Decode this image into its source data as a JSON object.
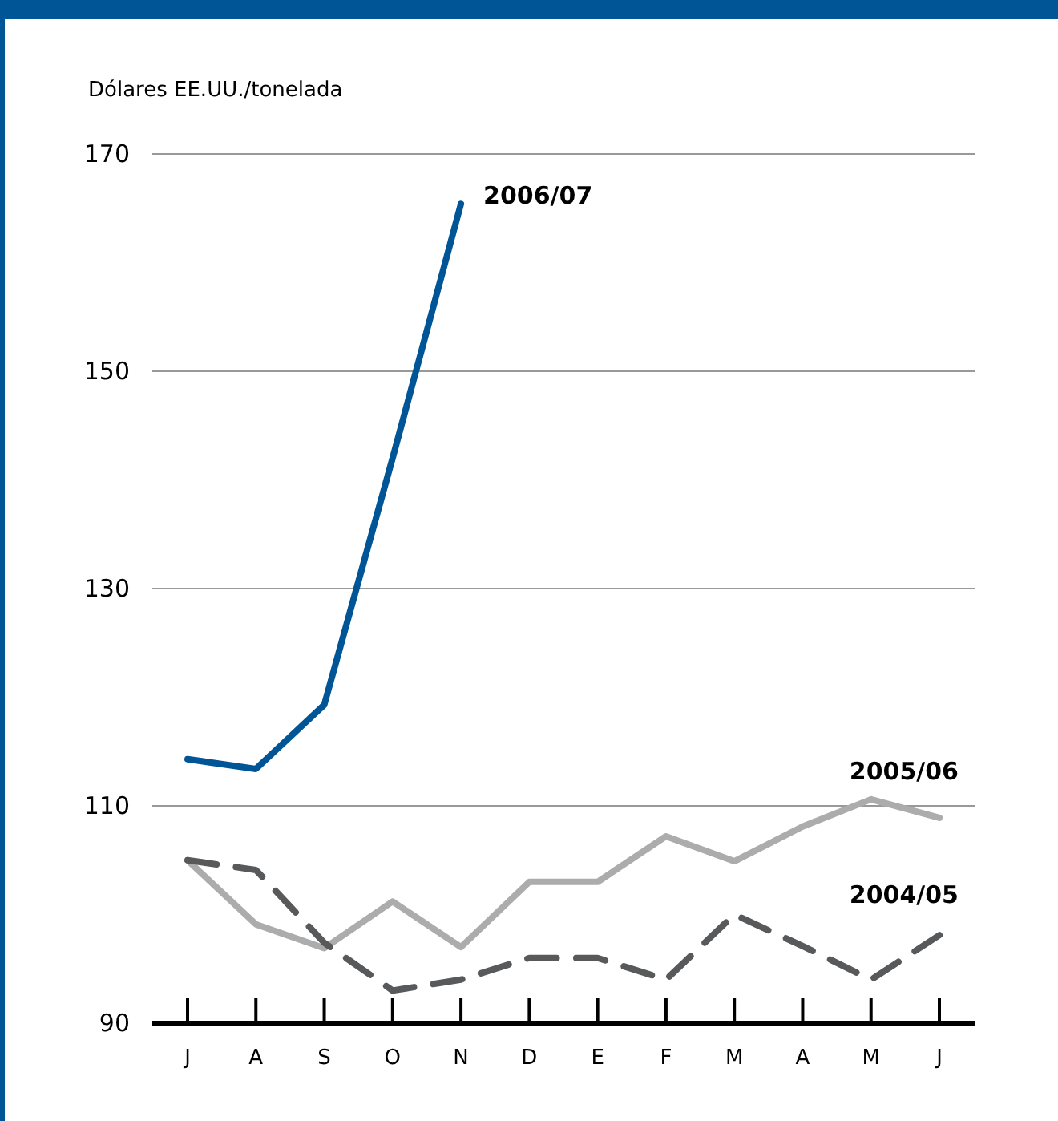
{
  "chart_data": {
    "type": "line",
    "ylabel": "Dólares EE.UU./tonelada",
    "categories": [
      "J",
      "A",
      "S",
      "O",
      "N",
      "D",
      "E",
      "F",
      "M",
      "A",
      "M",
      "J"
    ],
    "ylim": [
      90,
      170
    ],
    "yticks": [
      90,
      110,
      130,
      150,
      170
    ],
    "grid": "y",
    "legend": false,
    "series": [
      {
        "name": "2006/07",
        "color": "#005596",
        "line_style": "solid",
        "values": [
          114.3,
          113.4,
          119.3,
          142,
          165.4,
          null,
          null,
          null,
          null,
          null,
          null,
          null
        ]
      },
      {
        "name": "2005/06",
        "color": "#acacac",
        "line_style": "solid",
        "values": [
          105,
          99.1,
          96.9,
          101.2,
          97,
          103,
          103,
          107.2,
          104.9,
          108.1,
          110.6,
          108.9
        ]
      },
      {
        "name": "2004/05",
        "color": "#58595b",
        "line_style": "dashed",
        "values": [
          105,
          104.1,
          97.4,
          93,
          94,
          96,
          96,
          94,
          100,
          97.1,
          94,
          98.1
        ]
      }
    ]
  }
}
